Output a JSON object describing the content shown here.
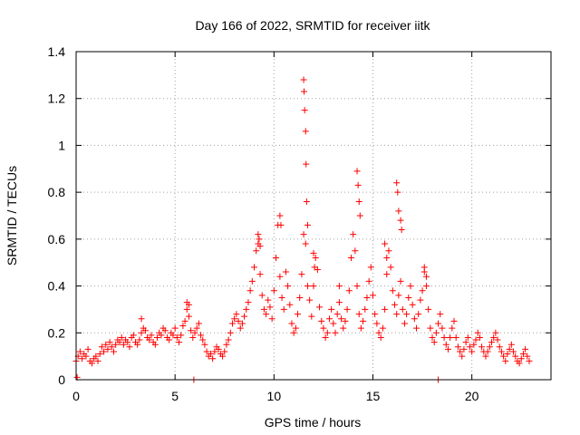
{
  "chart_data": {
    "type": "scatter",
    "title": "Day 166 of 2022, SRMTID for receiver iitk",
    "xlabel": "GPS time / hours",
    "ylabel": "SRMTID / TECUs",
    "xlim": [
      0,
      24
    ],
    "ylim": [
      0,
      1.4
    ],
    "xticks": [
      0,
      5,
      10,
      15,
      20
    ],
    "xtick_labels": [
      "0",
      "5",
      "10",
      "15",
      "20"
    ],
    "yticks": [
      0,
      0.2,
      0.4,
      0.6,
      0.8,
      1,
      1.2,
      1.4
    ],
    "ytick_labels": [
      "0",
      "0.2",
      "0.4",
      "0.6",
      "0.8",
      "1",
      "1.2",
      "1.4"
    ],
    "grid": true,
    "marker": "+",
    "color": "#ff0000",
    "series": [
      {
        "name": "SRMTID",
        "x": [
          0.0,
          0.1,
          0.2,
          0.3,
          0.4,
          0.5,
          0.6,
          0.7,
          0.8,
          0.9,
          1.0,
          1.1,
          1.2,
          1.3,
          1.4,
          1.5,
          1.6,
          1.7,
          1.8,
          1.9,
          2.0,
          2.1,
          2.2,
          2.3,
          2.4,
          2.5,
          2.6,
          2.7,
          2.8,
          2.9,
          3.0,
          3.1,
          3.2,
          3.3,
          3.4,
          3.5,
          3.6,
          3.7,
          3.8,
          3.9,
          4.0,
          4.1,
          4.2,
          4.3,
          4.4,
          4.5,
          4.6,
          4.7,
          4.8,
          4.9,
          5.0,
          5.1,
          5.2,
          5.3,
          5.4,
          5.5,
          5.6,
          5.7,
          5.8,
          5.9,
          6.0,
          6.1,
          6.2,
          6.3,
          6.4,
          6.5,
          6.6,
          6.7,
          6.8,
          6.9,
          7.0,
          7.1,
          7.2,
          7.3,
          7.4,
          7.5,
          7.6,
          7.7,
          7.8,
          7.9,
          8.0,
          8.1,
          8.2,
          8.3,
          8.4,
          8.5,
          8.6,
          8.7,
          8.8,
          8.9,
          9.0,
          9.1,
          9.2,
          9.3,
          9.4,
          9.5,
          9.6,
          9.7,
          9.8,
          9.9,
          10.0,
          10.1,
          10.2,
          10.3,
          10.4,
          10.5,
          10.6,
          10.7,
          10.8,
          10.9,
          11.0,
          11.1,
          11.2,
          11.3,
          11.4,
          11.5,
          11.6,
          11.7,
          11.8,
          11.9,
          12.0,
          12.1,
          12.2,
          12.3,
          12.4,
          12.5,
          12.6,
          12.7,
          12.8,
          12.9,
          13.0,
          13.1,
          13.2,
          13.3,
          13.4,
          13.5,
          13.6,
          13.7,
          13.8,
          13.9,
          14.0,
          14.1,
          14.2,
          14.3,
          14.4,
          14.5,
          14.6,
          14.7,
          14.8,
          14.9,
          15.0,
          15.1,
          15.2,
          15.3,
          15.4,
          15.5,
          15.6,
          15.7,
          15.8,
          15.9,
          16.0,
          16.1,
          16.2,
          16.3,
          16.4,
          16.5,
          16.6,
          16.7,
          16.8,
          16.9,
          17.0,
          17.1,
          17.2,
          17.3,
          17.4,
          17.5,
          17.6,
          17.7,
          17.8,
          17.9,
          18.0,
          18.1,
          18.2,
          18.3,
          18.4,
          18.5,
          18.6,
          18.7,
          18.8,
          18.9,
          19.0,
          19.1,
          19.2,
          19.3,
          19.4,
          19.5,
          19.6,
          19.7,
          19.8,
          19.9,
          20.0,
          20.1,
          20.2,
          20.3,
          20.4,
          20.5,
          20.6,
          20.7,
          20.8,
          20.9,
          21.0,
          21.1,
          21.2,
          21.3,
          21.4,
          21.5,
          21.6,
          21.7,
          21.8,
          21.9,
          22.0,
          22.1,
          22.2,
          22.3,
          22.4,
          22.5,
          22.6,
          22.7,
          22.8,
          22.9,
          0.05,
          5.95,
          18.3,
          11.5,
          11.52,
          11.55,
          11.6,
          11.62,
          11.65,
          11.7,
          14.2,
          14.25,
          14.3,
          14.35,
          16.2,
          16.25,
          16.3,
          16.4,
          16.45,
          10.3,
          10.35,
          12.0,
          12.05,
          9.2,
          9.25,
          9.3,
          5.6,
          5.7,
          3.3,
          13.3,
          15.6,
          15.7,
          17.6,
          17.7
        ],
        "y": [
          0.08,
          0.1,
          0.12,
          0.09,
          0.11,
          0.1,
          0.13,
          0.08,
          0.07,
          0.09,
          0.1,
          0.08,
          0.11,
          0.14,
          0.12,
          0.15,
          0.13,
          0.16,
          0.14,
          0.12,
          0.15,
          0.17,
          0.16,
          0.18,
          0.15,
          0.17,
          0.16,
          0.14,
          0.18,
          0.19,
          0.16,
          0.15,
          0.17,
          0.2,
          0.22,
          0.21,
          0.18,
          0.17,
          0.19,
          0.16,
          0.15,
          0.18,
          0.2,
          0.19,
          0.22,
          0.21,
          0.18,
          0.17,
          0.2,
          0.19,
          0.22,
          0.18,
          0.16,
          0.19,
          0.23,
          0.25,
          0.3,
          0.27,
          0.21,
          0.18,
          0.2,
          0.22,
          0.24,
          0.19,
          0.17,
          0.15,
          0.12,
          0.1,
          0.11,
          0.09,
          0.12,
          0.14,
          0.13,
          0.11,
          0.1,
          0.12,
          0.15,
          0.17,
          0.2,
          0.24,
          0.26,
          0.28,
          0.25,
          0.22,
          0.24,
          0.27,
          0.3,
          0.33,
          0.38,
          0.42,
          0.48,
          0.55,
          0.58,
          0.45,
          0.36,
          0.3,
          0.28,
          0.34,
          0.31,
          0.26,
          0.38,
          0.52,
          0.66,
          0.44,
          0.35,
          0.3,
          0.46,
          0.4,
          0.32,
          0.24,
          0.2,
          0.22,
          0.28,
          0.35,
          0.45,
          0.62,
          0.58,
          0.4,
          0.34,
          0.27,
          0.4,
          0.52,
          0.47,
          0.31,
          0.25,
          0.22,
          0.18,
          0.2,
          0.26,
          0.3,
          0.24,
          0.2,
          0.28,
          0.33,
          0.26,
          0.22,
          0.25,
          0.3,
          0.38,
          0.52,
          0.62,
          0.55,
          0.4,
          0.28,
          0.22,
          0.25,
          0.3,
          0.35,
          0.42,
          0.48,
          0.36,
          0.28,
          0.24,
          0.2,
          0.18,
          0.22,
          0.3,
          0.45,
          0.55,
          0.48,
          0.38,
          0.32,
          0.28,
          0.36,
          0.42,
          0.3,
          0.24,
          0.28,
          0.35,
          0.4,
          0.32,
          0.26,
          0.22,
          0.28,
          0.34,
          0.38,
          0.46,
          0.4,
          0.3,
          0.22,
          0.18,
          0.16,
          0.2,
          0.24,
          0.28,
          0.22,
          0.18,
          0.15,
          0.13,
          0.18,
          0.22,
          0.25,
          0.18,
          0.14,
          0.12,
          0.1,
          0.13,
          0.16,
          0.18,
          0.14,
          0.12,
          0.15,
          0.17,
          0.2,
          0.18,
          0.14,
          0.12,
          0.1,
          0.12,
          0.14,
          0.16,
          0.18,
          0.2,
          0.17,
          0.14,
          0.12,
          0.1,
          0.08,
          0.11,
          0.13,
          0.15,
          0.12,
          0.1,
          0.08,
          0.07,
          0.09,
          0.11,
          0.13,
          0.1,
          0.08,
          0.01,
          0.0,
          0.0,
          1.28,
          1.23,
          1.15,
          1.06,
          0.92,
          0.76,
          0.66,
          0.89,
          0.83,
          0.76,
          0.7,
          0.84,
          0.8,
          0.72,
          0.68,
          0.64,
          0.7,
          0.66,
          0.54,
          0.48,
          0.62,
          0.6,
          0.57,
          0.33,
          0.32,
          0.26,
          0.4,
          0.58,
          0.52,
          0.48,
          0.44
        ]
      }
    ]
  }
}
